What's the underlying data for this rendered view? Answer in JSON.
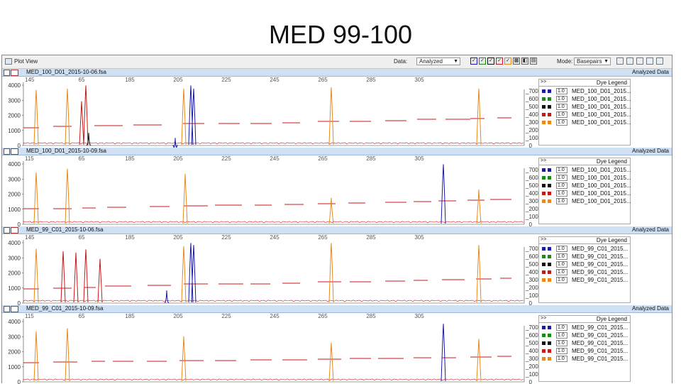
{
  "slide_title": "MED 99-100",
  "toolbar": {
    "view_title": "Plot View",
    "data_label": "Data:",
    "data_value": "Analyzed",
    "mode_label": "Mode:",
    "mode_value": "Basepairs"
  },
  "dyes": [
    {
      "name": "blue",
      "color": "#1a1aa6"
    },
    {
      "name": "green",
      "color": "#1b8a1b"
    },
    {
      "name": "black",
      "color": "#111111"
    },
    {
      "name": "red",
      "color": "#c41a1a"
    },
    {
      "name": "orange",
      "color": "#e88a1a"
    }
  ],
  "x_ticks": [
    "115",
    "65",
    "185",
    "205",
    "225",
    "245",
    "265",
    "285",
    "305"
  ],
  "panels": [
    {
      "file": "MED_100_D01_2015-10-06.fsa",
      "status": "Analyzed Data",
      "y_ticks": [
        "4000",
        "3000",
        "2000",
        "1000",
        "0"
      ],
      "top_value": "145",
      "right_ticks": [
        "7000",
        "6000",
        "5000",
        "4000",
        "3000",
        "2000",
        "1000",
        "0"
      ],
      "legend_title": "Dye Legend",
      "legend": [
        {
          "value": "1.0",
          "name": "MED_100_D01_2015..."
        },
        {
          "value": "1.0",
          "name": "MED_100_D01_2015..."
        },
        {
          "value": "1.0",
          "name": "MED_100_D01_2015..."
        },
        {
          "value": "1.0",
          "name": "MED_100_D01_2015..."
        },
        {
          "value": "1.0",
          "name": "MED_100_D01_2015..."
        }
      ]
    },
    {
      "file": "MED_100_D01_2015-10-09.fsa",
      "status": "Analyzed Data",
      "y_ticks": [
        "4000",
        "3000",
        "2000",
        "1000",
        "0"
      ],
      "top_value": "115",
      "right_ticks": [
        "7000",
        "6000",
        "5000",
        "4000",
        "3000",
        "2000",
        "1000",
        "0"
      ],
      "legend_title": "Dye Legend",
      "legend": [
        {
          "value": "1.0",
          "name": "MED_100_D01_2015..."
        },
        {
          "value": "1.0",
          "name": "MED_100_D01_2015..."
        },
        {
          "value": "1.0",
          "name": "MED_100_D01_2015..."
        },
        {
          "value": "1.0",
          "name": "MED_100_D01_2015..."
        },
        {
          "value": "1.0",
          "name": "MED_100_D01_2015..."
        }
      ]
    },
    {
      "file": "MED_99_C01_2015-10-06.fsa",
      "status": "Analyzed Data",
      "y_ticks": [
        "4000",
        "3000",
        "2000",
        "1000",
        "0"
      ],
      "top_value": "145",
      "right_ticks": [
        "7000",
        "6000",
        "5000",
        "4000",
        "3000",
        "2000",
        "1000",
        "0"
      ],
      "legend_title": "Dye Legend",
      "legend": [
        {
          "value": "1.0",
          "name": "MED_99_C01_2015..."
        },
        {
          "value": "1.0",
          "name": "MED_99_C01_2015..."
        },
        {
          "value": "1.0",
          "name": "MED_99_C01_2015..."
        },
        {
          "value": "1.0",
          "name": "MED_99_C01_2015..."
        },
        {
          "value": "1.0",
          "name": "MED_99_C01_2015..."
        }
      ]
    },
    {
      "file": "MED_99_C01_2015-10-09.fsa",
      "status": "Analyzed Data",
      "y_ticks": [
        "4000",
        "3000",
        "2000",
        "1000",
        "0"
      ],
      "top_value": "115",
      "right_ticks": [
        "7000",
        "6000",
        "5000",
        "4000",
        "3000",
        "2000",
        "1000",
        "0"
      ],
      "legend_title": "Dye Legend",
      "legend": [
        {
          "value": "1.0",
          "name": "MED_99_C01_2015..."
        },
        {
          "value": "1.0",
          "name": "MED_99_C01_2015..."
        },
        {
          "value": "1.0",
          "name": "MED_99_C01_2015..."
        },
        {
          "value": "1.0",
          "name": "MED_99_C01_2015..."
        },
        {
          "value": "1.0",
          "name": "MED_99_C01_2015..."
        }
      ]
    }
  ]
}
